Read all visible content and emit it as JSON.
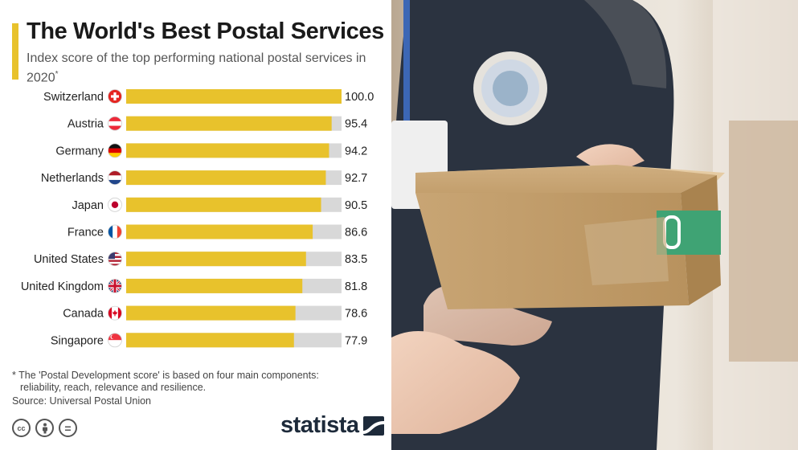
{
  "header": {
    "title": "The World's Best Postal Services",
    "subtitle": "Index score of the top performing national postal services in 2020",
    "subtitle_mark": "*"
  },
  "chart_data": {
    "type": "bar",
    "orientation": "horizontal",
    "title": "The World's Best Postal Services",
    "subtitle": "Index score of the top performing national postal services in 2020*",
    "categories": [
      "Switzerland",
      "Austria",
      "Germany",
      "Netherlands",
      "Japan",
      "France",
      "United States",
      "United Kingdom",
      "Canada",
      "Singapore"
    ],
    "values": [
      100.0,
      95.4,
      94.2,
      92.7,
      90.5,
      86.6,
      83.5,
      81.8,
      78.6,
      77.9
    ],
    "value_labels": [
      "100.0",
      "95.4",
      "94.2",
      "92.7",
      "90.5",
      "86.6",
      "83.5",
      "81.8",
      "78.6",
      "77.9"
    ],
    "flags": [
      "switzerland-flag",
      "austria-flag",
      "germany-flag",
      "netherlands-flag",
      "japan-flag",
      "france-flag",
      "united-states-flag",
      "united-kingdom-flag",
      "canada-flag",
      "singapore-flag"
    ],
    "xlim": [
      0,
      100
    ],
    "grid": false,
    "colors": {
      "bar": "#E8C22C",
      "track": "#D8D8D8",
      "label": "#222222"
    }
  },
  "footnote": {
    "line1": "* The 'Postal Development score' is based on four main components:",
    "line2": "reliability, reach, relevance and resilience."
  },
  "source": "Source: Universal Postal Union",
  "license_icons": [
    "cc-icon",
    "attribution-icon",
    "no-derivatives-icon"
  ],
  "license_text": {
    "cc": "cc",
    "equals": "="
  },
  "brand": {
    "name": "statista",
    "logo": "statista-logo-icon"
  },
  "photo": {
    "description_icon": "courier-holding-parcel-photo"
  },
  "colors": {
    "accent": "#E8C22C",
    "title": "#1a1a1a",
    "text": "#555555"
  }
}
